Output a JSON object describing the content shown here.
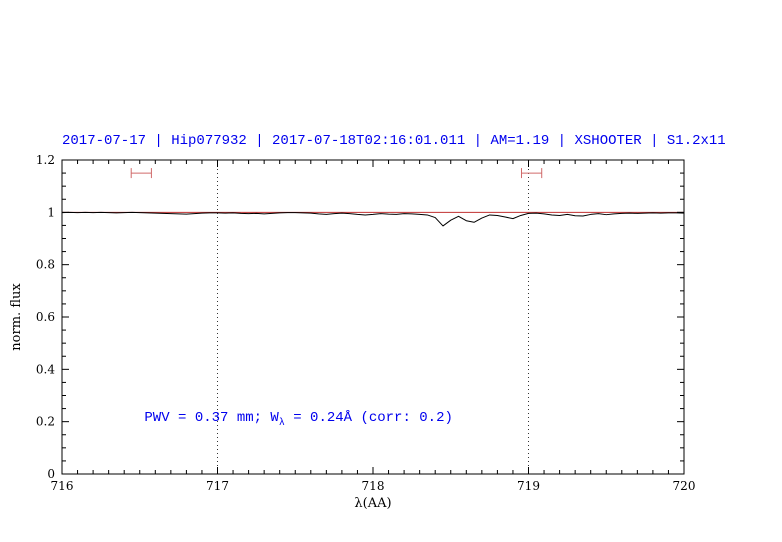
{
  "colors": {
    "accent_blue": "#0000ee",
    "continuum_red": "#c03030",
    "marker_red": "#d06a6a",
    "spectrum_black": "#000000",
    "axis_black": "#000000",
    "guide_gray": "#333333"
  },
  "chart_data": {
    "type": "line",
    "title": "2017-07-17 | Hip077932 | 2017-07-18T02:16:01.011 | AM=1.19 | XSHOOTER | S1.2x11",
    "xlabel": "λ(AA)",
    "ylabel": "norm. flux",
    "xlim": [
      716,
      720
    ],
    "ylim": [
      0,
      1.2
    ],
    "xticks": [
      716,
      717,
      718,
      719,
      720
    ],
    "xtick_labels": [
      "716",
      "717",
      "718",
      "719",
      "720"
    ],
    "x_minor_step": 0.1,
    "yticks": [
      0,
      0.2,
      0.4,
      0.6,
      0.8,
      1,
      1.2
    ],
    "ytick_labels": [
      "0",
      "0.2",
      "0.4",
      "0.6",
      "0.8",
      "1",
      "1.2"
    ],
    "y_minor_step": 0.05,
    "grid": "off",
    "legend": "none",
    "dotted_vlines": [
      717,
      719
    ],
    "continuum_level": 1.0,
    "range_markers": [
      {
        "x_center": 716.51,
        "x_half_width": 0.065,
        "y": 1.15
      },
      {
        "x_center": 719.02,
        "x_half_width": 0.065,
        "y": 1.15
      }
    ],
    "series": [
      {
        "name": "continuum-fit",
        "color": "#c03030",
        "x_start": 716.0,
        "x_step": 4.0,
        "y": [
          1.0,
          1.0
        ]
      },
      {
        "name": "observed-spectrum",
        "color": "#000000",
        "x_start": 716.0,
        "x_step": 0.05,
        "y": [
          0.999,
          1.0,
          0.999,
          1.0,
          0.999,
          1.0,
          0.999,
          0.998,
          0.999,
          1.0,
          0.999,
          0.998,
          0.997,
          0.996,
          0.995,
          0.994,
          0.993,
          0.995,
          0.997,
          0.998,
          0.998,
          0.997,
          0.998,
          0.996,
          0.995,
          0.996,
          0.994,
          0.996,
          0.998,
          0.999,
          0.999,
          0.998,
          0.997,
          0.994,
          0.992,
          0.995,
          0.997,
          0.995,
          0.992,
          0.99,
          0.992,
          0.995,
          0.993,
          0.992,
          0.995,
          0.994,
          0.992,
          0.99,
          0.98,
          0.948,
          0.97,
          0.985,
          0.968,
          0.962,
          0.978,
          0.99,
          0.988,
          0.982,
          0.976,
          0.988,
          0.996,
          0.997,
          0.994,
          0.99,
          0.988,
          0.992,
          0.987,
          0.986,
          0.992,
          0.995,
          0.991,
          0.994,
          0.996,
          0.997,
          0.996,
          0.997,
          0.998,
          0.997,
          0.998,
          0.998,
          0.997
        ]
      }
    ],
    "annotation": {
      "part1": "PWV = 0.37 mm; W",
      "sub": "λ",
      "part2": " = 0.24Å (corr: 0.2)",
      "x": 716.53,
      "y": 0.2
    }
  }
}
